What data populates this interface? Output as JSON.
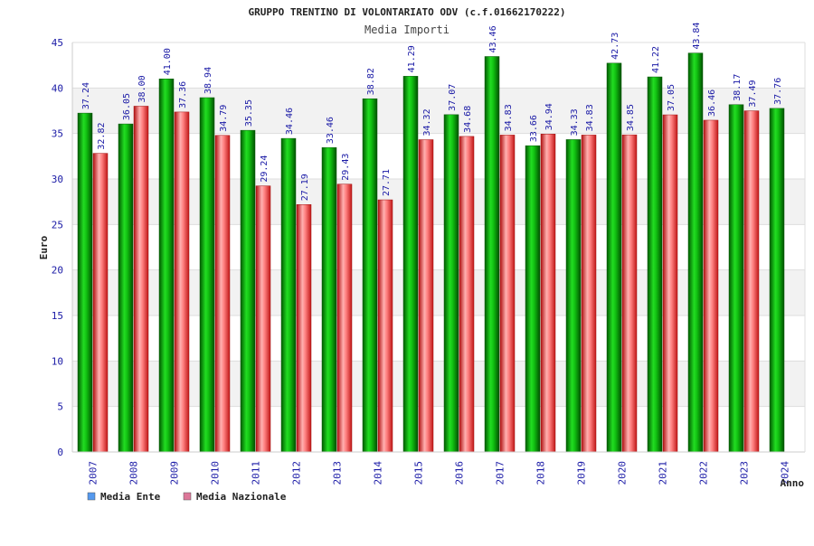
{
  "chart_data": {
    "type": "bar",
    "title": "GRUPPO TRENTINO DI VOLONTARIATO ODV (c.f.01662170222)",
    "subtitle": "Media Importi",
    "xlabel": "Anno",
    "ylabel": "Euro",
    "ylim": [
      0,
      45
    ],
    "yticks": [
      0,
      5,
      10,
      15,
      20,
      25,
      30,
      35,
      40,
      45
    ],
    "categories": [
      "2007",
      "2008",
      "2009",
      "2010",
      "2011",
      "2012",
      "2013",
      "2014",
      "2015",
      "2016",
      "2017",
      "2018",
      "2019",
      "2020",
      "2021",
      "2022",
      "2023",
      "2024"
    ],
    "series": [
      {
        "name": "Media Ente",
        "color": "#00a000",
        "legend_color": "#5599ee",
        "values": [
          37.24,
          36.05,
          41.0,
          38.94,
          35.35,
          34.46,
          33.46,
          38.82,
          41.29,
          37.07,
          43.46,
          33.66,
          34.33,
          42.73,
          41.22,
          43.84,
          38.17,
          37.76
        ],
        "labels": [
          "37.24",
          "36.05",
          "41.00",
          "38.94",
          "35.35",
          "34.46",
          "33.46",
          "38.82",
          "41.29",
          "37.07",
          "43.46",
          "33.66",
          "34.33",
          "42.73",
          "41.22",
          "43.84",
          "38.17",
          "37.76"
        ]
      },
      {
        "name": "Media Nazionale",
        "color": "#e03030",
        "legend_color": "#dd7799",
        "values": [
          32.82,
          38.0,
          37.36,
          34.79,
          29.24,
          27.19,
          29.43,
          27.71,
          34.32,
          34.68,
          34.83,
          34.94,
          34.83,
          34.85,
          37.05,
          36.46,
          37.49,
          null
        ],
        "labels": [
          "32.82",
          "38.00",
          "37.36",
          "34.79",
          "29.24",
          "27.19",
          "29.43",
          "27.71",
          "34.32",
          "34.68",
          "34.83",
          "34.94",
          "34.83",
          "34.85",
          "37.05",
          "36.46",
          "37.49",
          ""
        ]
      }
    ],
    "grid": true,
    "legend_position": "bottom-left"
  }
}
